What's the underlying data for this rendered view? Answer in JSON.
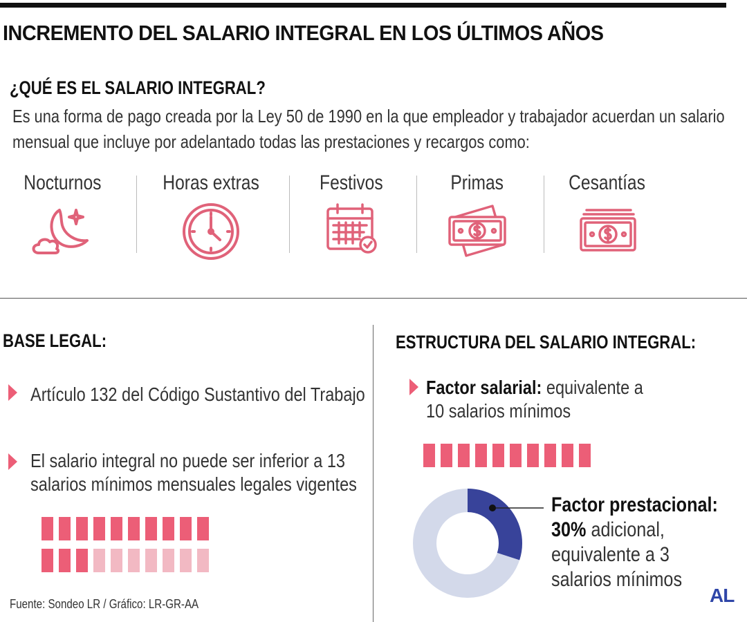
{
  "title": "INCREMENTO DEL SALARIO INTEGRAL EN LOS ÚLTIMOS AÑOS",
  "what_is": {
    "heading": "¿QUÉ ES EL SALARIO INTEGRAL?",
    "line1": "Es una forma de pago creada por la  Ley 50 de 1990 en la que empleador y trabajador acuerdan un salario",
    "line2": "mensual que incluye por adelantado todas las prestaciones y recargos como:"
  },
  "benefits": [
    {
      "label": "Nocturnos",
      "icon": "moon-stars-cloud-icon"
    },
    {
      "label": "Horas extras",
      "icon": "clock-icon"
    },
    {
      "label": "Festivos",
      "icon": "calendar-check-icon"
    },
    {
      "label": "Primas",
      "icon": "money-bills-icon"
    },
    {
      "label": "Cesantías",
      "icon": "money-stack-icon"
    }
  ],
  "legal": {
    "heading": "BASE LEGAL:",
    "bullet1": "Artículo 132 del Código Sustantivo del Trabajo",
    "bullet2_line1": "El salario integral no puede ser inferior a 13",
    "bullet2_line2": "salarios mínimos mensuales legales vigentes",
    "blocks_total": 20,
    "blocks_highlighted": 13
  },
  "structure": {
    "heading": "ESTRUCTURA DEL SALARIO INTEGRAL:",
    "salary_label": "Factor salarial:",
    "salary_text1": " equivalente a",
    "salary_text2": "10 salarios mínimos",
    "salary_blocks": 10,
    "prest_label": "Factor prestacional:",
    "prest_pct": "30%",
    "prest_text1": " adicional,",
    "prest_text2": "equivalente a 3",
    "prest_text3": "salarios mínimos",
    "donut_fraction": 0.3
  },
  "colors": {
    "accent": "#ec5e77",
    "accent_light": "#f2b9c3",
    "donut_fill": "#38439a",
    "donut_track": "#d3d9ea",
    "logo": "#2f46a8"
  },
  "source": "Fuente: Sondeo LR / Gráfico: LR-GR-AA",
  "logo": "AL"
}
